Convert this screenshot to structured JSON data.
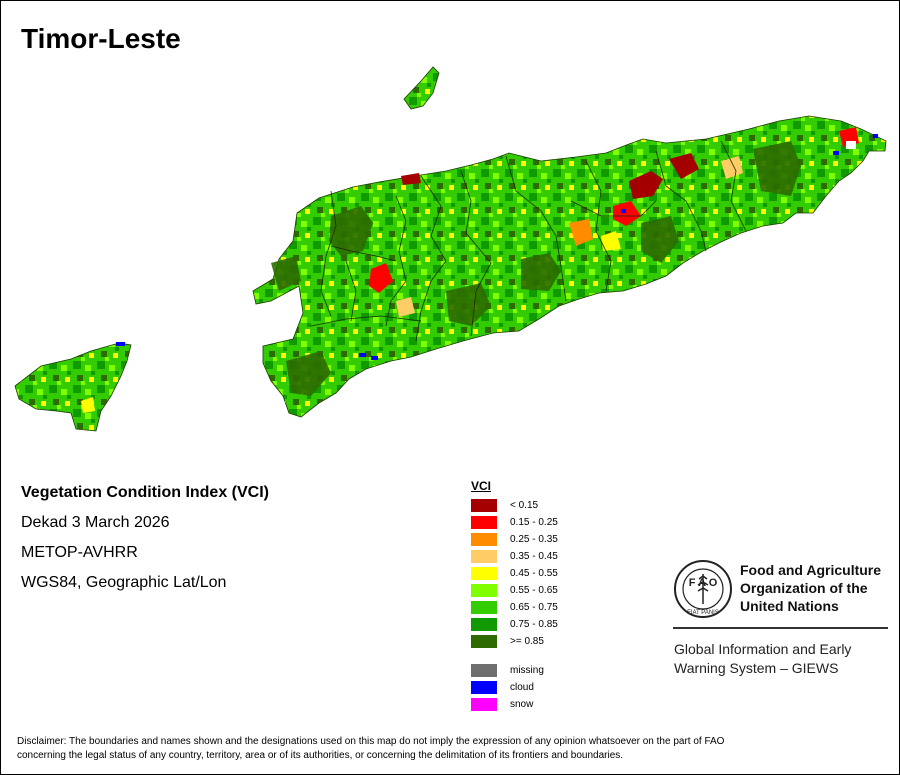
{
  "map": {
    "title": "Timor-Leste"
  },
  "info": {
    "title": "Vegetation Condition Index (VCI)",
    "date": "Dekad 3 March 2026",
    "sensor": "METOP-AVHRR",
    "projection": "WGS84, Geographic Lat/Lon"
  },
  "legend": {
    "title": "VCI",
    "classes": [
      {
        "label": "< 0.15",
        "color": "#a50000"
      },
      {
        "label": "0.15 - 0.25",
        "color": "#ff0000"
      },
      {
        "label": "0.25 - 0.35",
        "color": "#ff8c00"
      },
      {
        "label": "0.35 - 0.45",
        "color": "#ffcc66"
      },
      {
        "label": "0.45 - 0.55",
        "color": "#ffff00"
      },
      {
        "label": "0.55 - 0.65",
        "color": "#80ff00"
      },
      {
        "label": "0.65 - 0.75",
        "color": "#33cc00"
      },
      {
        "label": "0.75 - 0.85",
        "color": "#119900"
      },
      {
        "label": ">= 0.85",
        "color": "#2d6b00"
      }
    ],
    "other": [
      {
        "label": "missing",
        "color": "#6e6e6e"
      },
      {
        "label": "cloud",
        "color": "#0000ff"
      },
      {
        "label": "snow",
        "color": "#ff00ff"
      }
    ]
  },
  "organization": {
    "name_line1": "Food and Agriculture",
    "name_line2": "Organization of the",
    "name_line3": "United Nations",
    "system_line1": "Global Information and Early",
    "system_line2": "Warning System – GIEWS",
    "logo_text": "FIAT PANIS"
  },
  "disclaimer": {
    "line1": "Disclaimer: The boundaries and names shown and the designations used on this map do not imply the expression of any opinion whatsoever on the part of FAO",
    "line2": "concerning the legal status of any country, territory, area or of its authorities, or concerning the delimitation of its frontiers and boundaries."
  }
}
